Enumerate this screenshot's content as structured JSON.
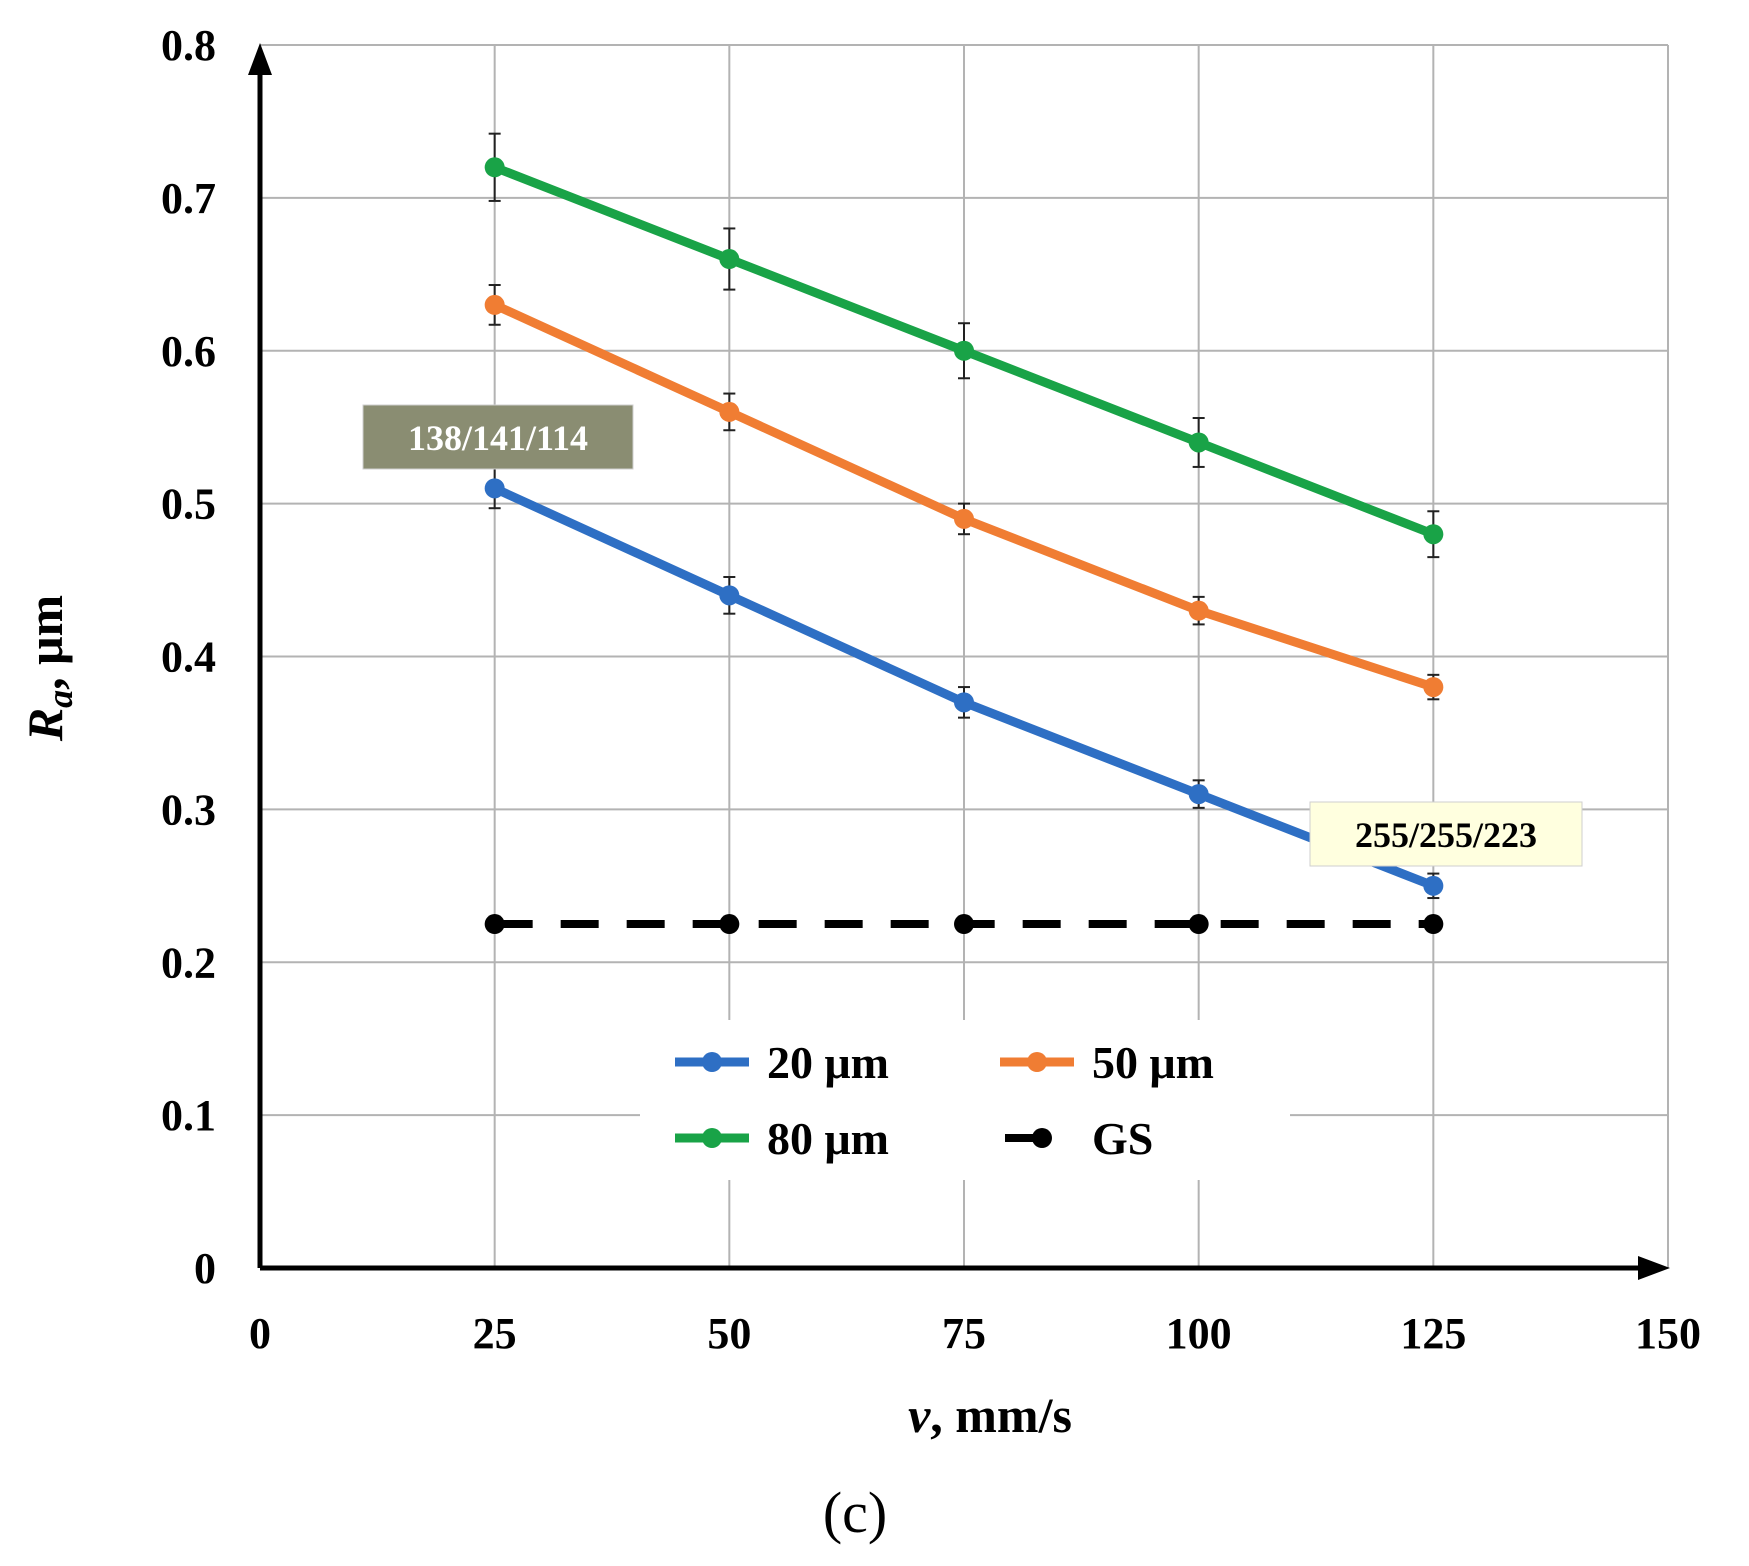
{
  "chart_data": {
    "type": "line",
    "x": [
      25,
      50,
      75,
      100,
      125
    ],
    "xlim": [
      0,
      150
    ],
    "ylim": [
      0,
      0.8
    ],
    "xticks": [
      "0",
      "25",
      "50",
      "75",
      "100",
      "125",
      "150"
    ],
    "yticks": [
      "0",
      "0.1",
      "0.2",
      "0.3",
      "0.4",
      "0.5",
      "0.6",
      "0.7",
      "0.8"
    ],
    "xlabel_italic": "v",
    "xlabel_rest": ", mm/s",
    "ylabel_main": "R",
    "ylabel_sub": "a",
    "ylabel_rest": ", μm",
    "grid": true,
    "legend_position": "lower-center",
    "series": [
      {
        "name": "20 μm",
        "color": "#2e6fc4",
        "values": [
          0.51,
          0.44,
          0.37,
          0.31,
          0.25
        ],
        "errors": [
          0.013,
          0.012,
          0.01,
          0.009,
          0.008
        ]
      },
      {
        "name": "50 μm",
        "color": "#f07d33",
        "values": [
          0.63,
          0.56,
          0.49,
          0.43,
          0.38
        ],
        "errors": [
          0.013,
          0.012,
          0.01,
          0.009,
          0.008
        ]
      },
      {
        "name": "80 μm",
        "color": "#19a347",
        "values": [
          0.72,
          0.66,
          0.6,
          0.54,
          0.48
        ],
        "errors": [
          0.022,
          0.02,
          0.018,
          0.016,
          0.015
        ]
      },
      {
        "name": "GS",
        "color": "#000000",
        "dashed": true,
        "values": [
          0.225,
          0.225,
          0.225,
          0.225,
          0.225
        ]
      }
    ],
    "annotations": [
      {
        "text": "138/141/114",
        "bg": "#8a8d72",
        "fg": "#ffffff"
      },
      {
        "text": "255/255/223",
        "bg": "#ffffdf",
        "fg": "#000000"
      }
    ]
  },
  "caption": "(c)"
}
